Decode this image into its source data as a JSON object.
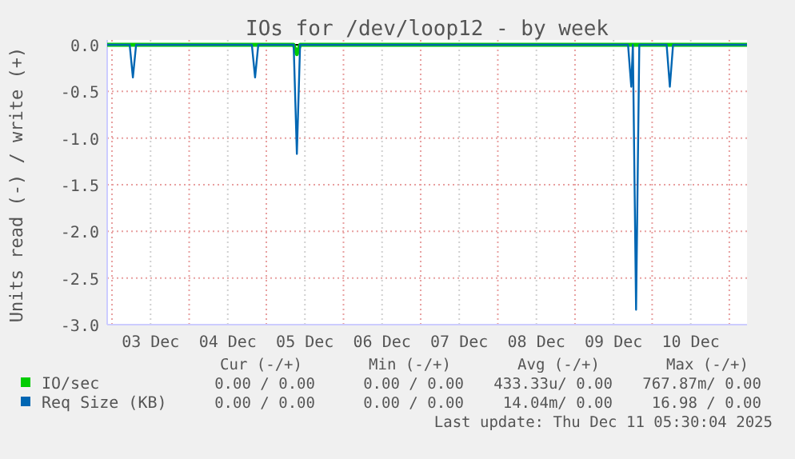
{
  "chart_data": {
    "type": "line",
    "title": "IOs for /dev/loop12 - by week",
    "ylabel": "Units read (-) / write (+)",
    "x": [
      "2025-12-02T22:30",
      "2025-12-03T05:30",
      "2025-12-03T06:30",
      "2025-12-03T07:30",
      "2025-12-04T19:30",
      "2025-12-04T20:30",
      "2025-12-04T21:30",
      "2025-12-05T08:30",
      "2025-12-05T09:30",
      "2025-12-05T10:30",
      "2025-12-09T16:30",
      "2025-12-09T17:30",
      "2025-12-09T18:00",
      "2025-12-09T19:00",
      "2025-12-09T20:00",
      "2025-12-10T04:30",
      "2025-12-10T05:30",
      "2025-12-10T06:30",
      "2025-12-11T05:30"
    ],
    "series": [
      {
        "name": "IO/sec",
        "color": "#00cc00",
        "values": [
          0,
          0,
          0,
          0,
          0,
          0,
          0,
          0,
          -0.1,
          0,
          0,
          0,
          0,
          0,
          0,
          0,
          0,
          0,
          0
        ]
      },
      {
        "name": "Req Size (KB)",
        "color": "#0066b3",
        "values": [
          0,
          0,
          -0.35,
          0,
          0,
          -0.35,
          0,
          0,
          -1.17,
          0,
          0,
          -0.45,
          0,
          -2.84,
          0,
          0,
          -0.45,
          0,
          0
        ]
      }
    ],
    "xlim": [
      "2025-12-02T22:30",
      "2025-12-11T05:30"
    ],
    "xticks": [
      {
        "value": "2025-12-03T00:00",
        "label": null
      },
      {
        "value": "2025-12-03T12:00",
        "label": "03 Dec"
      },
      {
        "value": "2025-12-04T00:00",
        "label": null
      },
      {
        "value": "2025-12-04T12:00",
        "label": "04 Dec"
      },
      {
        "value": "2025-12-05T00:00",
        "label": null
      },
      {
        "value": "2025-12-05T12:00",
        "label": "05 Dec"
      },
      {
        "value": "2025-12-06T00:00",
        "label": null
      },
      {
        "value": "2025-12-06T12:00",
        "label": "06 Dec"
      },
      {
        "value": "2025-12-07T00:00",
        "label": null
      },
      {
        "value": "2025-12-07T12:00",
        "label": "07 Dec"
      },
      {
        "value": "2025-12-08T00:00",
        "label": null
      },
      {
        "value": "2025-12-08T12:00",
        "label": "08 Dec"
      },
      {
        "value": "2025-12-09T00:00",
        "label": null
      },
      {
        "value": "2025-12-09T12:00",
        "label": "09 Dec"
      },
      {
        "value": "2025-12-10T00:00",
        "label": null
      },
      {
        "value": "2025-12-10T12:00",
        "label": "10 Dec"
      },
      {
        "value": "2025-12-11T00:00",
        "label": null
      }
    ],
    "ylim": [
      -3,
      0
    ],
    "yticks": [
      {
        "value": 0,
        "label": "0.0"
      },
      {
        "value": -0.5,
        "label": "-0.5"
      },
      {
        "value": -1,
        "label": "-1.0"
      },
      {
        "value": -1.5,
        "label": "-1.5"
      },
      {
        "value": -2,
        "label": "-2.0"
      },
      {
        "value": -2.5,
        "label": "-2.5"
      },
      {
        "value": -3,
        "label": "-3.0"
      }
    ],
    "ref_lines": [
      {
        "axis": "y",
        "value": 0,
        "color": "#000000"
      }
    ],
    "grid": true,
    "legend": "bottom",
    "annotations": [
      "Cur (-/+)",
      "Min (-/+)",
      "Avg (-/+)",
      "Max (-/+)",
      "0.00 / 0.00",
      "0.00 / 0.00",
      "433.33u/ 0.00",
      "767.87m/ 0.00",
      "0.00 / 0.00",
      "0.00 / 0.00",
      "14.04m/ 0.00",
      "16.98 / 0.00",
      "Last update: Thu Dec 11 05:30:04 2025"
    ]
  }
}
